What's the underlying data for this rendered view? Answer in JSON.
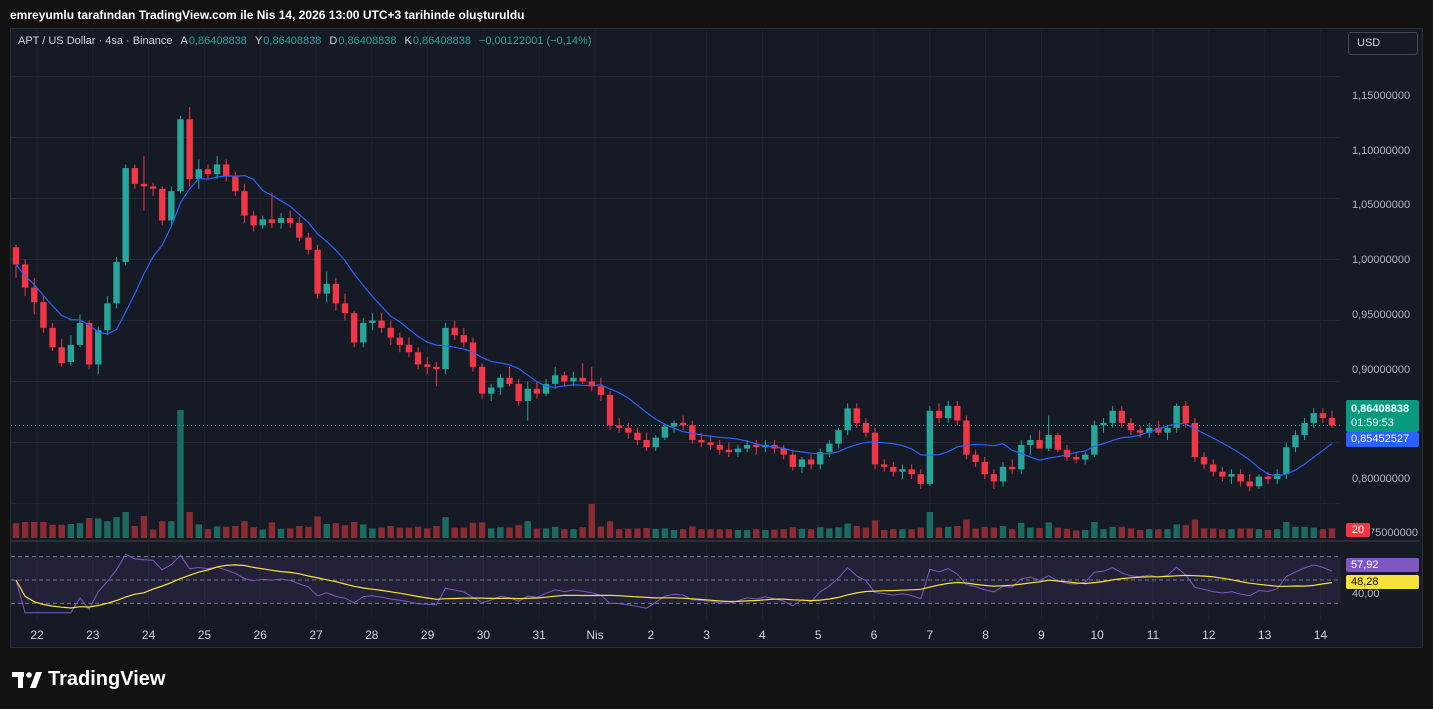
{
  "header": {
    "caption": "emreyumlu tarafından TradingView.com ile Nis 14, 2026 13:00 UTC+3 tarihinde oluşturuldu"
  },
  "legend": {
    "symbol": "APT / US Dollar · 4sa · Binance",
    "open_label": "A",
    "open": "0,86408838",
    "high_label": "Y",
    "high": "0,86408838",
    "low_label": "D",
    "low": "0,86408838",
    "close_label": "K",
    "close": "0,86408838",
    "change": "−0,00122001 (−0,14%)"
  },
  "currency_button": "USD",
  "price_axis": [
    "1,15000000",
    "1,10000000",
    "1,05000000",
    "1,00000000",
    "0,95000000",
    "0,90000000",
    "0,80000000"
  ],
  "price_axis_last": "0,75000000",
  "tags": {
    "last_price": "0,86408838",
    "countdown": "01:59:53",
    "ma_value": "0,85452527",
    "volume_value": "20",
    "rsi_value": "57,92",
    "rsi_ma_value": "48,28",
    "rsi_level": "40,00"
  },
  "time_axis": [
    "22",
    "23",
    "24",
    "25",
    "26",
    "27",
    "28",
    "29",
    "30",
    "31",
    "Nis",
    "2",
    "3",
    "4",
    "5",
    "6",
    "7",
    "8",
    "9",
    "10",
    "11",
    "12",
    "13",
    "14"
  ],
  "brand": "TradingView",
  "colors": {
    "up": "#26a69a",
    "down": "#f23645",
    "ma": "#2962ff",
    "rsi": "#7e57c2",
    "rsi_ma": "#f7e13a",
    "bg": "#161a25"
  },
  "chart_data": {
    "type": "candlestick",
    "timeframe": "4h",
    "ylim": [
      0.77,
      1.18
    ],
    "series": [
      {
        "name": "price",
        "values": [
          [
            1.01,
            1.012,
            0.985,
            0.996
          ],
          [
            0.996,
            1.0,
            0.97,
            0.977
          ],
          [
            0.977,
            0.985,
            0.955,
            0.965
          ],
          [
            0.965,
            0.97,
            0.94,
            0.944
          ],
          [
            0.944,
            0.948,
            0.925,
            0.928
          ],
          [
            0.928,
            0.935,
            0.912,
            0.915
          ],
          [
            0.916,
            0.938,
            0.913,
            0.93
          ],
          [
            0.93,
            0.955,
            0.928,
            0.948
          ],
          [
            0.948,
            0.95,
            0.91,
            0.914
          ],
          [
            0.914,
            0.945,
            0.906,
            0.942
          ],
          [
            0.942,
            0.97,
            0.938,
            0.964
          ],
          [
            0.964,
            1.002,
            0.96,
            0.998
          ],
          [
            0.998,
            1.078,
            0.995,
            1.075
          ],
          [
            1.075,
            1.078,
            1.058,
            1.062
          ],
          [
            1.062,
            1.085,
            1.04,
            1.06
          ],
          [
            1.06,
            1.063,
            1.052,
            1.058
          ],
          [
            1.058,
            1.06,
            1.028,
            1.032
          ],
          [
            1.032,
            1.06,
            1.028,
            1.056
          ],
          [
            1.056,
            1.118,
            1.054,
            1.115
          ],
          [
            1.115,
            1.125,
            1.06,
            1.066
          ],
          [
            1.066,
            1.082,
            1.058,
            1.074
          ],
          [
            1.074,
            1.078,
            1.066,
            1.07
          ],
          [
            1.07,
            1.085,
            1.066,
            1.078
          ],
          [
            1.078,
            1.082,
            1.064,
            1.068
          ],
          [
            1.068,
            1.072,
            1.052,
            1.056
          ],
          [
            1.056,
            1.062,
            1.03,
            1.036
          ],
          [
            1.036,
            1.04,
            1.023,
            1.028
          ],
          [
            1.028,
            1.036,
            1.025,
            1.033
          ],
          [
            1.033,
            1.055,
            1.026,
            1.03
          ],
          [
            1.03,
            1.038,
            1.025,
            1.034
          ],
          [
            1.034,
            1.04,
            1.026,
            1.03
          ],
          [
            1.03,
            1.035,
            1.015,
            1.018
          ],
          [
            1.018,
            1.022,
            1.004,
            1.008
          ],
          [
            1.008,
            1.012,
            0.968,
            0.972
          ],
          [
            0.972,
            0.99,
            0.965,
            0.98
          ],
          [
            0.98,
            0.985,
            0.958,
            0.964
          ],
          [
            0.964,
            0.972,
            0.95,
            0.956
          ],
          [
            0.956,
            0.958,
            0.928,
            0.932
          ],
          [
            0.932,
            0.952,
            0.928,
            0.948
          ],
          [
            0.948,
            0.956,
            0.942,
            0.95
          ],
          [
            0.95,
            0.956,
            0.94,
            0.944
          ],
          [
            0.944,
            0.95,
            0.93,
            0.936
          ],
          [
            0.936,
            0.94,
            0.924,
            0.93
          ],
          [
            0.93,
            0.936,
            0.92,
            0.924
          ],
          [
            0.924,
            0.928,
            0.91,
            0.914
          ],
          [
            0.914,
            0.92,
            0.906,
            0.912
          ],
          [
            0.912,
            0.916,
            0.896,
            0.91
          ],
          [
            0.91,
            0.948,
            0.906,
            0.944
          ],
          [
            0.944,
            0.95,
            0.934,
            0.938
          ],
          [
            0.938,
            0.944,
            0.928,
            0.932
          ],
          [
            0.932,
            0.936,
            0.908,
            0.912
          ],
          [
            0.912,
            0.915,
            0.886,
            0.89
          ],
          [
            0.89,
            0.898,
            0.884,
            0.895
          ],
          [
            0.895,
            0.906,
            0.889,
            0.903
          ],
          [
            0.903,
            0.912,
            0.896,
            0.898
          ],
          [
            0.898,
            0.902,
            0.88,
            0.884
          ],
          [
            0.884,
            0.9,
            0.868,
            0.894
          ],
          [
            0.894,
            0.9,
            0.886,
            0.89
          ],
          [
            0.89,
            0.902,
            0.888,
            0.898
          ],
          [
            0.898,
            0.912,
            0.894,
            0.905
          ],
          [
            0.905,
            0.908,
            0.896,
            0.9
          ],
          [
            0.9,
            0.908,
            0.896,
            0.903
          ],
          [
            0.903,
            0.915,
            0.898,
            0.9
          ],
          [
            0.9,
            0.912,
            0.892,
            0.896
          ],
          [
            0.896,
            0.903,
            0.884,
            0.889
          ],
          [
            0.889,
            0.892,
            0.86,
            0.864
          ],
          [
            0.864,
            0.87,
            0.858,
            0.862
          ],
          [
            0.862,
            0.866,
            0.853,
            0.858
          ],
          [
            0.858,
            0.862,
            0.848,
            0.852
          ],
          [
            0.852,
            0.858,
            0.843,
            0.846
          ],
          [
            0.846,
            0.856,
            0.843,
            0.854
          ],
          [
            0.854,
            0.866,
            0.852,
            0.863
          ],
          [
            0.863,
            0.868,
            0.858,
            0.866
          ],
          [
            0.866,
            0.872,
            0.86,
            0.864
          ],
          [
            0.864,
            0.868,
            0.849,
            0.852
          ],
          [
            0.852,
            0.858,
            0.846,
            0.85
          ],
          [
            0.85,
            0.856,
            0.844,
            0.848
          ],
          [
            0.848,
            0.852,
            0.84,
            0.844
          ],
          [
            0.844,
            0.85,
            0.838,
            0.842
          ],
          [
            0.842,
            0.848,
            0.838,
            0.845
          ],
          [
            0.845,
            0.852,
            0.842,
            0.848
          ],
          [
            0.848,
            0.852,
            0.84,
            0.846
          ],
          [
            0.846,
            0.852,
            0.842,
            0.848
          ],
          [
            0.848,
            0.852,
            0.841,
            0.845
          ],
          [
            0.845,
            0.848,
            0.836,
            0.84
          ],
          [
            0.84,
            0.844,
            0.827,
            0.83
          ],
          [
            0.83,
            0.838,
            0.825,
            0.836
          ],
          [
            0.836,
            0.84,
            0.828,
            0.832
          ],
          [
            0.832,
            0.845,
            0.828,
            0.842
          ],
          [
            0.842,
            0.852,
            0.838,
            0.849
          ],
          [
            0.849,
            0.862,
            0.845,
            0.86
          ],
          [
            0.86,
            0.882,
            0.856,
            0.878
          ],
          [
            0.878,
            0.882,
            0.862,
            0.866
          ],
          [
            0.866,
            0.87,
            0.854,
            0.858
          ],
          [
            0.858,
            0.862,
            0.828,
            0.832
          ],
          [
            0.832,
            0.836,
            0.826,
            0.83
          ],
          [
            0.83,
            0.834,
            0.822,
            0.826
          ],
          [
            0.826,
            0.832,
            0.82,
            0.828
          ],
          [
            0.828,
            0.832,
            0.82,
            0.824
          ],
          [
            0.824,
            0.828,
            0.812,
            0.816
          ],
          [
            0.816,
            0.88,
            0.814,
            0.876
          ],
          [
            0.876,
            0.882,
            0.866,
            0.87
          ],
          [
            0.87,
            0.884,
            0.866,
            0.88
          ],
          [
            0.88,
            0.884,
            0.864,
            0.868
          ],
          [
            0.868,
            0.872,
            0.836,
            0.84
          ],
          [
            0.84,
            0.844,
            0.83,
            0.834
          ],
          [
            0.834,
            0.838,
            0.82,
            0.824
          ],
          [
            0.824,
            0.828,
            0.812,
            0.818
          ],
          [
            0.818,
            0.834,
            0.814,
            0.83
          ],
          [
            0.83,
            0.836,
            0.824,
            0.828
          ],
          [
            0.828,
            0.852,
            0.824,
            0.848
          ],
          [
            0.848,
            0.856,
            0.84,
            0.852
          ],
          [
            0.852,
            0.86,
            0.845,
            0.845
          ],
          [
            0.845,
            0.872,
            0.843,
            0.856
          ],
          [
            0.856,
            0.858,
            0.842,
            0.844
          ],
          [
            0.844,
            0.848,
            0.835,
            0.838
          ],
          [
            0.838,
            0.842,
            0.833,
            0.836
          ],
          [
            0.836,
            0.842,
            0.832,
            0.84
          ],
          [
            0.84,
            0.868,
            0.838,
            0.864
          ],
          [
            0.864,
            0.87,
            0.858,
            0.866
          ],
          [
            0.866,
            0.88,
            0.862,
            0.876
          ],
          [
            0.876,
            0.88,
            0.862,
            0.866
          ],
          [
            0.866,
            0.87,
            0.856,
            0.86
          ],
          [
            0.86,
            0.864,
            0.854,
            0.858
          ],
          [
            0.858,
            0.866,
            0.854,
            0.862
          ],
          [
            0.862,
            0.868,
            0.856,
            0.858
          ],
          [
            0.858,
            0.864,
            0.852,
            0.862
          ],
          [
            0.862,
            0.882,
            0.858,
            0.88
          ],
          [
            0.88,
            0.884,
            0.862,
            0.866
          ],
          [
            0.866,
            0.87,
            0.834,
            0.838
          ],
          [
            0.838,
            0.842,
            0.828,
            0.832
          ],
          [
            0.832,
            0.836,
            0.822,
            0.826
          ],
          [
            0.826,
            0.83,
            0.818,
            0.822
          ],
          [
            0.822,
            0.828,
            0.816,
            0.824
          ],
          [
            0.824,
            0.828,
            0.814,
            0.818
          ],
          [
            0.818,
            0.824,
            0.81,
            0.814
          ],
          [
            0.814,
            0.824,
            0.812,
            0.822
          ],
          [
            0.822,
            0.826,
            0.816,
            0.82
          ],
          [
            0.82,
            0.828,
            0.816,
            0.824
          ],
          [
            0.824,
            0.85,
            0.82,
            0.846
          ],
          [
            0.846,
            0.86,
            0.842,
            0.856
          ],
          [
            0.856,
            0.87,
            0.852,
            0.866
          ],
          [
            0.866,
            0.878,
            0.862,
            0.874
          ],
          [
            0.874,
            0.878,
            0.866,
            0.87
          ],
          [
            0.87,
            0.876,
            0.862,
            0.864
          ]
        ]
      }
    ],
    "ma_label": "0,85452527",
    "volume_max_label": "20",
    "rsi": {
      "value": 57.92,
      "ma": 48.28,
      "levels": [
        70,
        50,
        30
      ],
      "ylim": [
        20,
        80
      ]
    },
    "x_ticks": [
      "22",
      "23",
      "24",
      "25",
      "26",
      "27",
      "28",
      "29",
      "30",
      "31",
      "Nis",
      "2",
      "3",
      "4",
      "5",
      "6",
      "7",
      "8",
      "9",
      "10",
      "11",
      "12",
      "13",
      "14"
    ]
  }
}
